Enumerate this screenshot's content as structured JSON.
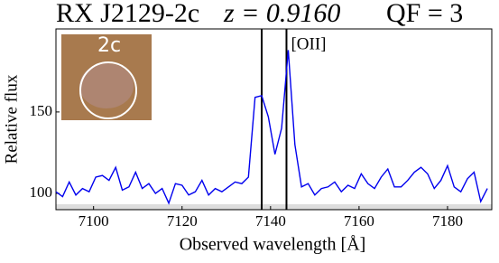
{
  "chart_data": {
    "type": "line",
    "title": "RX J2129-2c",
    "redshift": "z = 0.9160",
    "quality": "QF = 3",
    "x_label": "Observed wavelength  [Å]",
    "y_label": "Relative flux",
    "inset_label": "2c",
    "annotation": "[OII]",
    "vlines": [
      7138,
      7143.6
    ],
    "x": [
      7091.5,
      7093,
      7094.5,
      7096,
      7097.5,
      7099,
      7100.5,
      7102,
      7103.5,
      7105,
      7106.5,
      7108,
      7109.5,
      7111,
      7112.5,
      7114,
      7115.5,
      7117,
      7118.5,
      7120,
      7121.5,
      7123,
      7124.5,
      7126,
      7127.5,
      7129,
      7130.5,
      7132,
      7133.5,
      7135,
      7136.5,
      7138,
      7139.5,
      7141,
      7142.5,
      7144,
      7145.5,
      7147,
      7148.5,
      7150,
      7151.5,
      7153,
      7154.5,
      7156,
      7157.5,
      7159,
      7160.5,
      7162,
      7163.5,
      7165,
      7166.5,
      7168,
      7169.5,
      7171,
      7172.5,
      7174,
      7175.5,
      7177,
      7178.5,
      7180,
      7181.5,
      7183,
      7184.5,
      7186,
      7187.5,
      7189
    ],
    "series": [
      {
        "name": "RX J2129-2c",
        "color": "#0000ee",
        "values": [
          101,
          98,
          107,
          99,
          103,
          101,
          110,
          111,
          108,
          116,
          102,
          104,
          113,
          103,
          106,
          100,
          103,
          94,
          106,
          105,
          99,
          101,
          108,
          99,
          103,
          101,
          104,
          107,
          106,
          110,
          159,
          160,
          147,
          124,
          140,
          188,
          130,
          104,
          106,
          99,
          103,
          104,
          107,
          101,
          105,
          103,
          112,
          106,
          103,
          110,
          115,
          104,
          104,
          108,
          113,
          116,
          112,
          103,
          108,
          117,
          104,
          101,
          109,
          113,
          95,
          103
        ]
      }
    ],
    "xlim": [
      7091.5,
      7190
    ],
    "ylim": [
      90,
      201
    ],
    "xticks": [
      7100,
      7120,
      7140,
      7160,
      7180
    ],
    "yticks": [
      100,
      150
    ]
  }
}
